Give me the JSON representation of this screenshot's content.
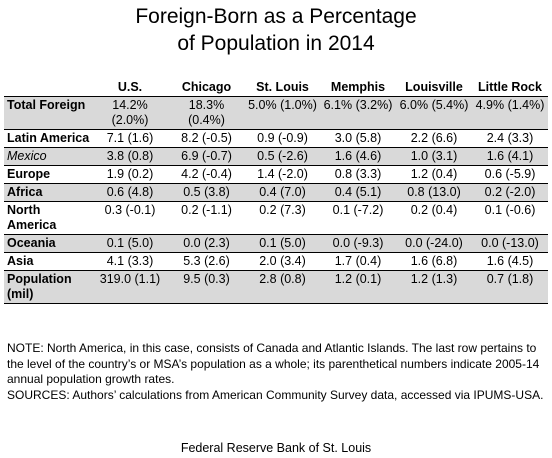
{
  "header": {
    "title_line1": "Foreign-Born as a Percentage",
    "title_line2": "of Population in 2014"
  },
  "table": {
    "columns": [
      "",
      "U.S.",
      "Chicago",
      "St. Louis",
      "Memphis",
      "Louisville",
      "Little Rock"
    ],
    "rows": [
      {
        "label": "Total Foreign",
        "italic": false,
        "values": [
          "14.2% (2.0%)",
          "18.3% (0.4%)",
          "5.0% (1.0%)",
          "6.1% (3.2%)",
          "6.0% (5.4%)",
          "4.9% (1.4%)"
        ]
      },
      {
        "label": "Latin America",
        "italic": false,
        "values": [
          "7.1 (1.6)",
          "8.2 (-0.5)",
          "0.9 (-0.9)",
          "3.0 (5.8)",
          "2.2 (6.6)",
          "2.4 (3.3)"
        ]
      },
      {
        "label": "Mexico",
        "italic": true,
        "values": [
          "3.8 (0.8)",
          "6.9 (-0.7)",
          "0.5 (-2.6)",
          "1.6 (4.6)",
          "1.0 (3.1)",
          "1.6 (4.1)"
        ]
      },
      {
        "label": "Europe",
        "italic": false,
        "values": [
          "1.9 (0.2)",
          "4.2 (-0.4)",
          "1.4 (-2.0)",
          "0.8 (3.3)",
          "1.2 (0.4)",
          "0.6 (-5.9)"
        ]
      },
      {
        "label": "Africa",
        "italic": false,
        "values": [
          "0.6 (4.8)",
          "0.5 (3.8)",
          "0.4 (7.0)",
          "0.4 (5.1)",
          "0.8 (13.0)",
          "0.2 (-2.0)"
        ]
      },
      {
        "label": "North America",
        "italic": false,
        "values": [
          "0.3 (-0.1)",
          "0.2 (-1.1)",
          "0.2 (7.3)",
          "0.1 (-7.2)",
          "0.2 (0.4)",
          "0.1 (-0.6)"
        ]
      },
      {
        "label": "Oceania",
        "italic": false,
        "values": [
          "0.1 (5.0)",
          "0.0 (2.3)",
          "0.1 (5.0)",
          "0.0 (-9.3)",
          "0.0 (-24.0)",
          "0.0 (-13.0)"
        ]
      },
      {
        "label": "Asia",
        "italic": false,
        "values": [
          "4.1 (3.3)",
          "5.3 (2.6)",
          "2.0 (3.4)",
          "1.7 (0.4)",
          "1.6 (6.8)",
          "1.6 (4.5)"
        ]
      },
      {
        "label": "Population (mil)",
        "italic": false,
        "values": [
          "319.0 (1.1)",
          "9.5 (0.3)",
          "2.8 (0.8)",
          "1.2 (0.1)",
          "1.2 (1.3)",
          "0.7 (1.8)"
        ]
      }
    ]
  },
  "notes": {
    "note": "NOTE: North America, in this case, consists of Canada and Atlantic Islands. The last row pertains to the level of the country’s or MSA’s population as a whole; its parenthetical numbers indicate 2005-14 annual population growth rates.",
    "sources": "SOURCES: Authors’ calculations from American Community Survey data, accessed via IPUMS-USA."
  },
  "footer": {
    "text": "Federal Reserve Bank of St. Louis"
  },
  "colors": {
    "shade": "#d9d9d9"
  },
  "chart_data": {
    "type": "table",
    "title": "Foreign-Born as a Percentage of Population in 2014",
    "columns": [
      "U.S.",
      "Chicago",
      "St. Louis",
      "Memphis",
      "Louisville",
      "Little Rock"
    ],
    "rows": [
      {
        "category": "Total Foreign",
        "values": [
          14.2,
          18.3,
          5.0,
          6.1,
          6.0,
          4.9
        ],
        "growth": [
          2.0,
          0.4,
          1.0,
          3.2,
          5.4,
          1.4
        ]
      },
      {
        "category": "Latin America",
        "values": [
          7.1,
          8.2,
          0.9,
          3.0,
          2.2,
          2.4
        ],
        "growth": [
          1.6,
          -0.5,
          -0.9,
          5.8,
          6.6,
          3.3
        ]
      },
      {
        "category": "Mexico",
        "values": [
          3.8,
          6.9,
          0.5,
          1.6,
          1.0,
          1.6
        ],
        "growth": [
          0.8,
          -0.7,
          -2.6,
          4.6,
          3.1,
          4.1
        ]
      },
      {
        "category": "Europe",
        "values": [
          1.9,
          4.2,
          1.4,
          0.8,
          1.2,
          0.6
        ],
        "growth": [
          0.2,
          -0.4,
          -2.0,
          3.3,
          0.4,
          -5.9
        ]
      },
      {
        "category": "Africa",
        "values": [
          0.6,
          0.5,
          0.4,
          0.4,
          0.8,
          0.2
        ],
        "growth": [
          4.8,
          3.8,
          7.0,
          5.1,
          13.0,
          -2.0
        ]
      },
      {
        "category": "North America",
        "values": [
          0.3,
          0.2,
          0.2,
          0.1,
          0.2,
          0.1
        ],
        "growth": [
          -0.1,
          -1.1,
          7.3,
          -7.2,
          0.4,
          -0.6
        ]
      },
      {
        "category": "Oceania",
        "values": [
          0.1,
          0.0,
          0.1,
          0.0,
          0.0,
          0.0
        ],
        "growth": [
          5.0,
          2.3,
          5.0,
          -9.3,
          -24.0,
          -13.0
        ]
      },
      {
        "category": "Asia",
        "values": [
          4.1,
          5.3,
          2.0,
          1.7,
          1.6,
          1.6
        ],
        "growth": [
          3.3,
          2.6,
          3.4,
          0.4,
          6.8,
          4.5
        ]
      },
      {
        "category": "Population (mil)",
        "values": [
          319.0,
          9.5,
          2.8,
          1.2,
          1.2,
          0.7
        ],
        "growth": [
          1.1,
          0.3,
          0.8,
          0.1,
          1.3,
          1.8
        ]
      }
    ]
  }
}
